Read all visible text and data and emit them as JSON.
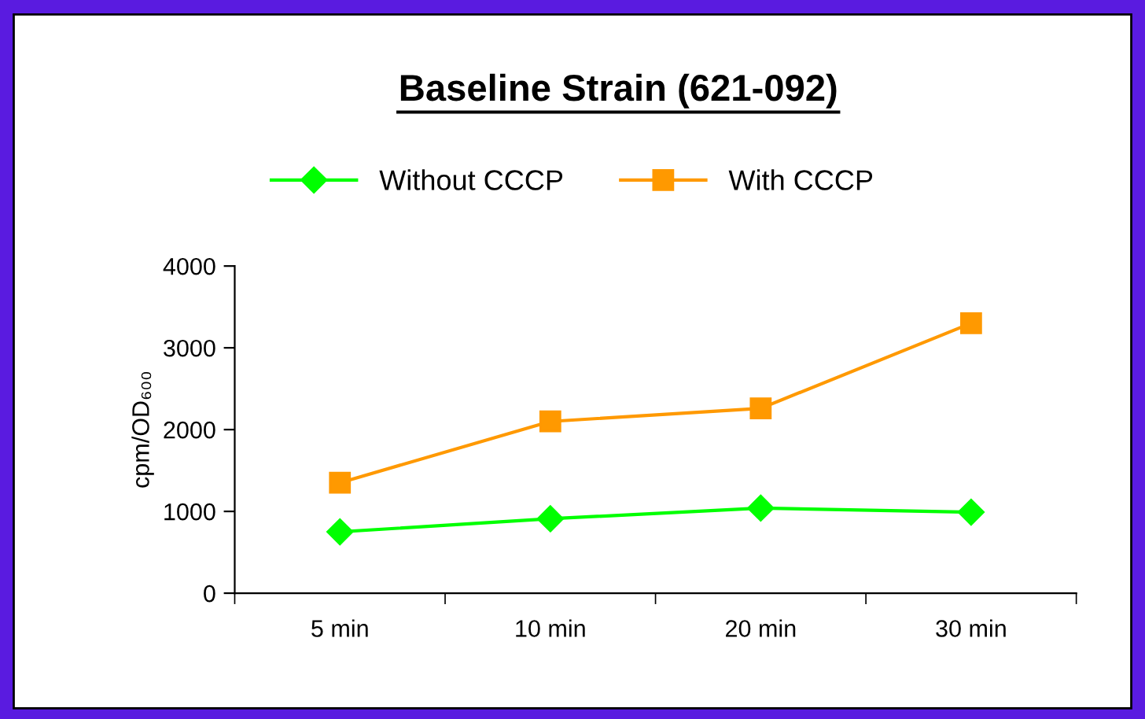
{
  "chart_data": {
    "type": "line",
    "title": "Baseline Strain (621-092)",
    "ylabel": "cpm/OD₆₀₀",
    "categories": [
      "5 min",
      "10 min",
      "20 min",
      "30 min"
    ],
    "series": [
      {
        "name": "Without CCCP",
        "color": "#00ff00",
        "marker": "diamond",
        "values": [
          750,
          910,
          1040,
          990
        ]
      },
      {
        "name": "With CCCP",
        "color": "#ff9900",
        "marker": "square",
        "values": [
          1350,
          2100,
          2260,
          3300
        ]
      }
    ],
    "ylim": [
      0,
      4000
    ],
    "yticks": [
      0,
      1000,
      2000,
      3000,
      4000
    ],
    "grid": false,
    "legend": "top",
    "line_style": "solid"
  }
}
